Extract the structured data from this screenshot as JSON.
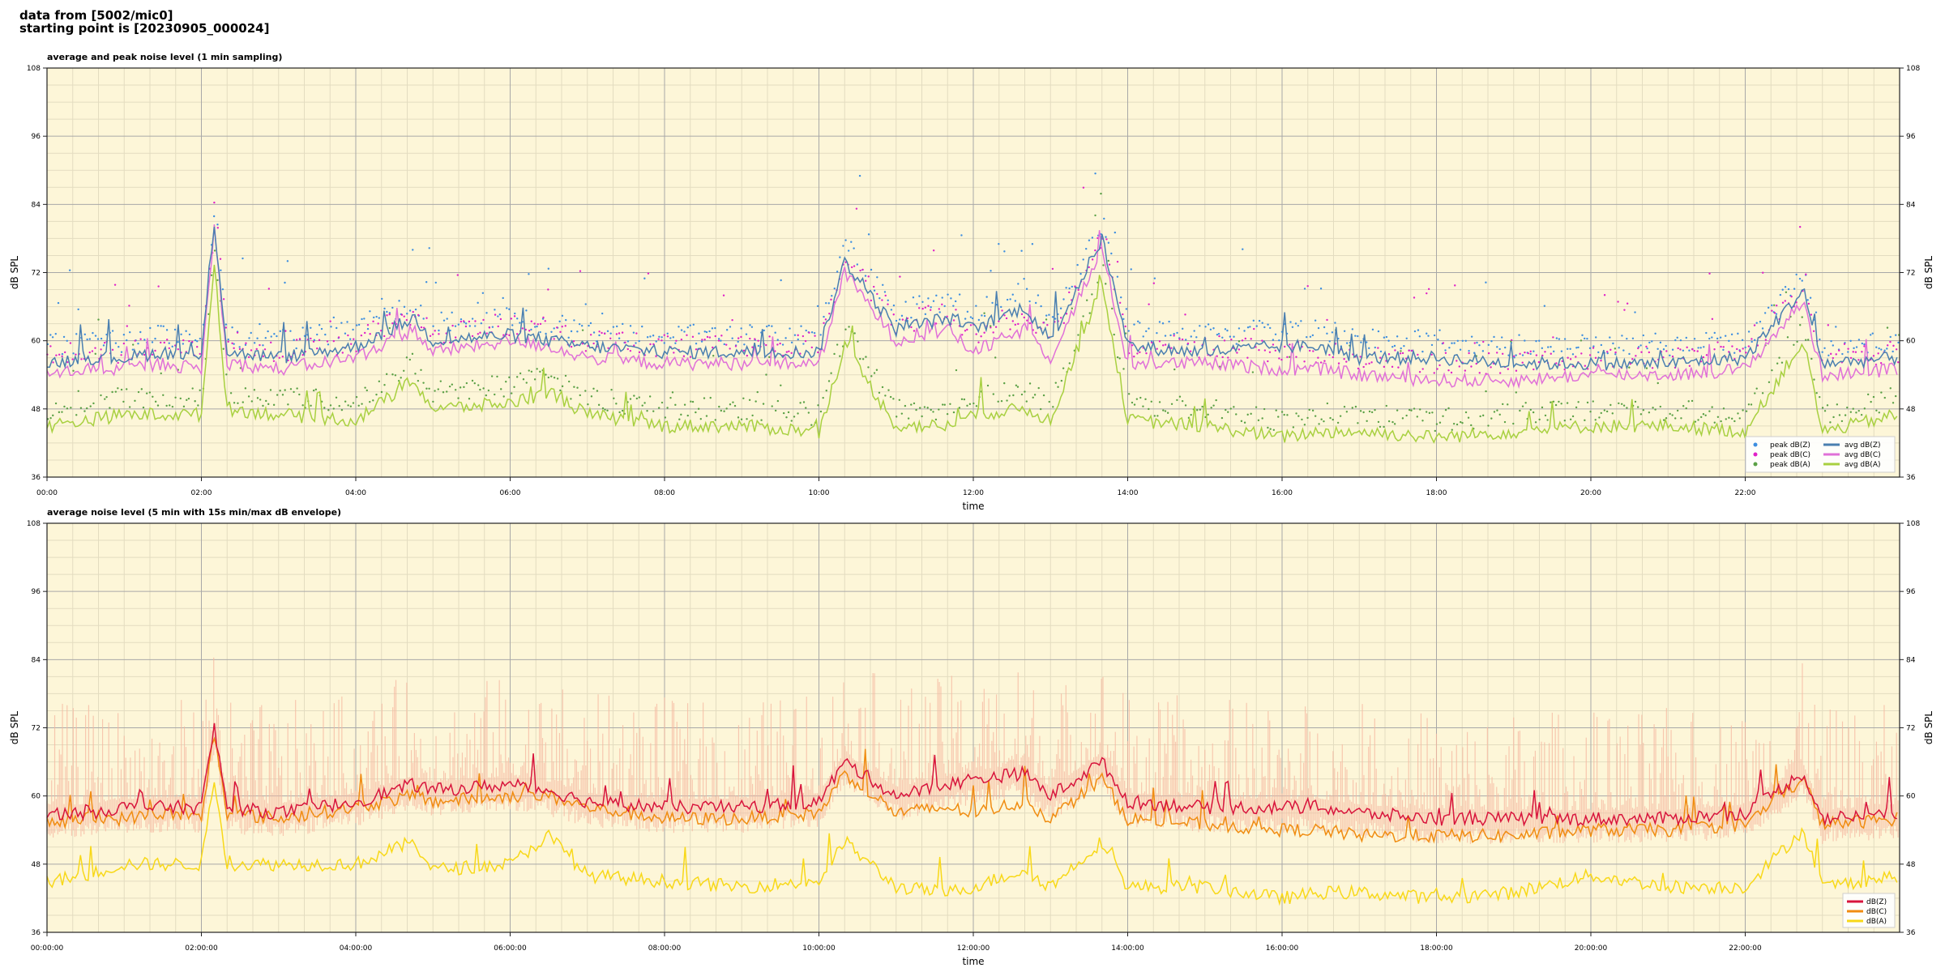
{
  "header": {
    "line1": "data from [5002/mic0]",
    "line2": "starting point is [20230905_000024]"
  },
  "colors": {
    "plot_bg": "#fdf6d8",
    "major_grid": "#a8a8a8",
    "minor_grid": "#e3dcc0",
    "peak_z": "#3d8ee0",
    "peak_c": "#e020c8",
    "peak_a": "#5aa045",
    "avg_z": "#4a7fb0",
    "avg_c": "#e070d8",
    "avg_a": "#a8d040",
    "dbz": "#d8143c",
    "dbc": "#f08c10",
    "dba": "#f8d818",
    "envelope": "#f6b8a0"
  },
  "chart_data": [
    {
      "type": "line",
      "title": "average and peak noise level (1 min sampling)",
      "xlabel": "time",
      "ylabel": "dB SPL",
      "xlim": [
        "00:00",
        "24:00"
      ],
      "ylim": [
        36,
        108
      ],
      "yticks": [
        36,
        48,
        60,
        72,
        84,
        96,
        108
      ],
      "xticks": [
        "00:00",
        "02:00",
        "04:00",
        "06:00",
        "08:00",
        "10:00",
        "12:00",
        "14:00",
        "16:00",
        "18:00",
        "20:00",
        "22:00"
      ],
      "grid": true,
      "legend_position": "bottom-right",
      "legend": [
        "peak dB(Z)",
        "peak dB(C)",
        "peak dB(A)",
        "avg dB(Z)",
        "avg dB(C)",
        "avg dB(A)"
      ],
      "series": [
        {
          "name": "avg dB(Z)",
          "x": [
            "00:00",
            "00:30",
            "01:00",
            "01:30",
            "02:00",
            "02:10",
            "02:20",
            "03:00",
            "04:00",
            "04:45",
            "05:00",
            "06:00",
            "06:30",
            "07:00",
            "08:00",
            "09:00",
            "10:00",
            "10:20",
            "11:00",
            "11:40",
            "12:00",
            "12:40",
            "13:00",
            "13:40",
            "14:00",
            "15:00",
            "16:00",
            "16:30",
            "17:00",
            "18:00",
            "19:00",
            "20:00",
            "21:00",
            "22:00",
            "22:45",
            "23:00",
            "23:59"
          ],
          "values": [
            56,
            57,
            57,
            58,
            57,
            81,
            58,
            57,
            59,
            64,
            60,
            61,
            60,
            59,
            58,
            58,
            58,
            74,
            62,
            64,
            62,
            66,
            60,
            78,
            59,
            58,
            59,
            59,
            57,
            57,
            56,
            56,
            56,
            57,
            69,
            56,
            57
          ]
        },
        {
          "name": "avg dB(C)",
          "x": [
            "00:00",
            "00:30",
            "01:00",
            "01:30",
            "02:00",
            "02:10",
            "02:20",
            "03:00",
            "04:00",
            "04:45",
            "05:00",
            "06:00",
            "06:30",
            "07:00",
            "08:00",
            "09:00",
            "10:00",
            "10:20",
            "11:00",
            "11:40",
            "12:00",
            "12:40",
            "13:00",
            "13:40",
            "14:00",
            "15:00",
            "16:00",
            "16:30",
            "17:00",
            "18:00",
            "19:00",
            "20:00",
            "21:00",
            "22:00",
            "22:45",
            "23:00",
            "23:59"
          ],
          "values": [
            54,
            55,
            55,
            56,
            55,
            80,
            56,
            55,
            57,
            62,
            58,
            60,
            59,
            57,
            56,
            56,
            56,
            72,
            60,
            62,
            58,
            62,
            57,
            76,
            56,
            56,
            55,
            55,
            54,
            53,
            53,
            54,
            54,
            55,
            67,
            54,
            55
          ]
        },
        {
          "name": "avg dB(A)",
          "x": [
            "00:00",
            "00:30",
            "01:00",
            "01:30",
            "02:00",
            "02:10",
            "02:20",
            "03:00",
            "04:00",
            "04:45",
            "05:00",
            "06:00",
            "06:30",
            "07:00",
            "08:00",
            "09:00",
            "10:00",
            "10:20",
            "11:00",
            "11:40",
            "12:00",
            "12:40",
            "13:00",
            "13:40",
            "14:00",
            "15:00",
            "16:00",
            "16:30",
            "17:00",
            "18:00",
            "19:00",
            "20:00",
            "21:00",
            "22:00",
            "22:45",
            "23:00",
            "23:59"
          ],
          "values": [
            45,
            46,
            47,
            47,
            47,
            74,
            48,
            47,
            46,
            53,
            48,
            49,
            51,
            47,
            45,
            45,
            44,
            59,
            45,
            45,
            47,
            48,
            46,
            70,
            46,
            45,
            43,
            44,
            44,
            43,
            44,
            45,
            45,
            44,
            60,
            44,
            47
          ]
        }
      ]
    },
    {
      "type": "line",
      "title": "average noise level (5 min with 15s min/max dB envelope)",
      "xlabel": "time",
      "ylabel": "dB SPL",
      "xlim": [
        "00:00:00",
        "24:00:00"
      ],
      "ylim": [
        36,
        108
      ],
      "yticks": [
        36,
        48,
        60,
        72,
        84,
        96,
        108
      ],
      "xticks": [
        "00:00:00",
        "02:00:00",
        "04:00:00",
        "06:00:00",
        "08:00:00",
        "10:00:00",
        "12:00:00",
        "14:00:00",
        "16:00:00",
        "18:00:00",
        "20:00:00",
        "22:00:00"
      ],
      "grid": true,
      "legend_position": "bottom-right",
      "legend": [
        "dB(Z)",
        "dB(C)",
        "dB(A)"
      ],
      "series": [
        {
          "name": "dB(Z)",
          "x": [
            "00:00",
            "00:30",
            "01:00",
            "01:30",
            "02:00",
            "02:10",
            "02:20",
            "03:00",
            "04:00",
            "04:45",
            "05:00",
            "06:00",
            "06:30",
            "07:00",
            "08:00",
            "09:00",
            "10:00",
            "10:20",
            "11:00",
            "11:40",
            "12:00",
            "12:40",
            "13:00",
            "13:40",
            "14:00",
            "15:00",
            "16:00",
            "16:30",
            "17:00",
            "18:00",
            "19:00",
            "20:00",
            "21:00",
            "22:00",
            "22:45",
            "23:00",
            "23:59"
          ],
          "values": [
            57,
            57,
            58,
            58,
            58,
            72,
            58,
            57,
            59,
            62,
            61,
            62,
            61,
            59,
            58,
            58,
            59,
            66,
            60,
            62,
            63,
            64,
            60,
            66,
            59,
            58,
            58,
            58,
            57,
            56,
            56,
            56,
            56,
            57,
            64,
            56,
            57
          ]
        },
        {
          "name": "dB(C)",
          "x": [
            "00:00",
            "00:30",
            "01:00",
            "01:30",
            "02:00",
            "02:10",
            "02:20",
            "03:00",
            "04:00",
            "04:45",
            "05:00",
            "06:00",
            "06:30",
            "07:00",
            "08:00",
            "09:00",
            "10:00",
            "10:20",
            "11:00",
            "11:40",
            "12:00",
            "12:40",
            "13:00",
            "13:40",
            "14:00",
            "15:00",
            "16:00",
            "16:30",
            "17:00",
            "18:00",
            "19:00",
            "20:00",
            "21:00",
            "22:00",
            "22:45",
            "23:00",
            "23:59"
          ],
          "values": [
            55,
            56,
            56,
            57,
            56,
            71,
            57,
            56,
            58,
            60,
            59,
            60,
            60,
            58,
            56,
            56,
            57,
            64,
            57,
            58,
            57,
            59,
            56,
            63,
            56,
            55,
            54,
            54,
            53,
            53,
            53,
            54,
            54,
            55,
            63,
            55,
            56
          ]
        },
        {
          "name": "dB(A)",
          "x": [
            "00:00",
            "00:30",
            "01:00",
            "01:30",
            "02:00",
            "02:10",
            "02:20",
            "03:00",
            "04:00",
            "04:45",
            "05:00",
            "06:00",
            "06:30",
            "07:00",
            "08:00",
            "09:00",
            "10:00",
            "10:20",
            "11:00",
            "11:40",
            "12:00",
            "12:40",
            "13:00",
            "13:40",
            "14:00",
            "15:00",
            "16:00",
            "16:30",
            "17:00",
            "18:00",
            "19:00",
            "20:00",
            "21:00",
            "22:00",
            "22:45",
            "23:00",
            "23:59"
          ],
          "values": [
            45,
            46,
            48,
            48,
            48,
            63,
            48,
            48,
            48,
            52,
            47,
            48,
            53,
            46,
            45,
            44,
            45,
            52,
            44,
            43,
            44,
            47,
            44,
            52,
            44,
            44,
            42,
            43,
            43,
            42,
            43,
            46,
            44,
            44,
            54,
            44,
            46
          ]
        }
      ]
    }
  ]
}
